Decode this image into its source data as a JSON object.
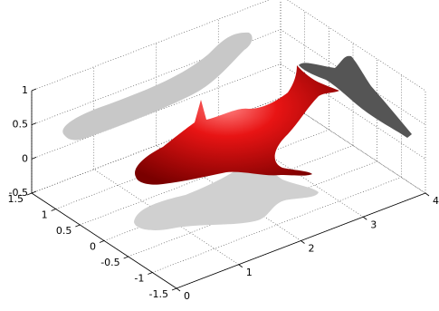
{
  "chart_data": {
    "type": "surface3d",
    "xlim": [
      0,
      4
    ],
    "xticks": [
      0,
      1,
      2,
      3,
      4
    ],
    "ylim": [
      -1.5,
      1.5
    ],
    "yticks": [
      -1.5,
      -1,
      -0.5,
      0,
      0.5,
      1,
      1.5
    ],
    "zlim": [
      -0.5,
      1
    ],
    "zticks": [
      -0.5,
      0,
      0.5,
      1
    ],
    "grid": true,
    "color": "#e01010"
  }
}
